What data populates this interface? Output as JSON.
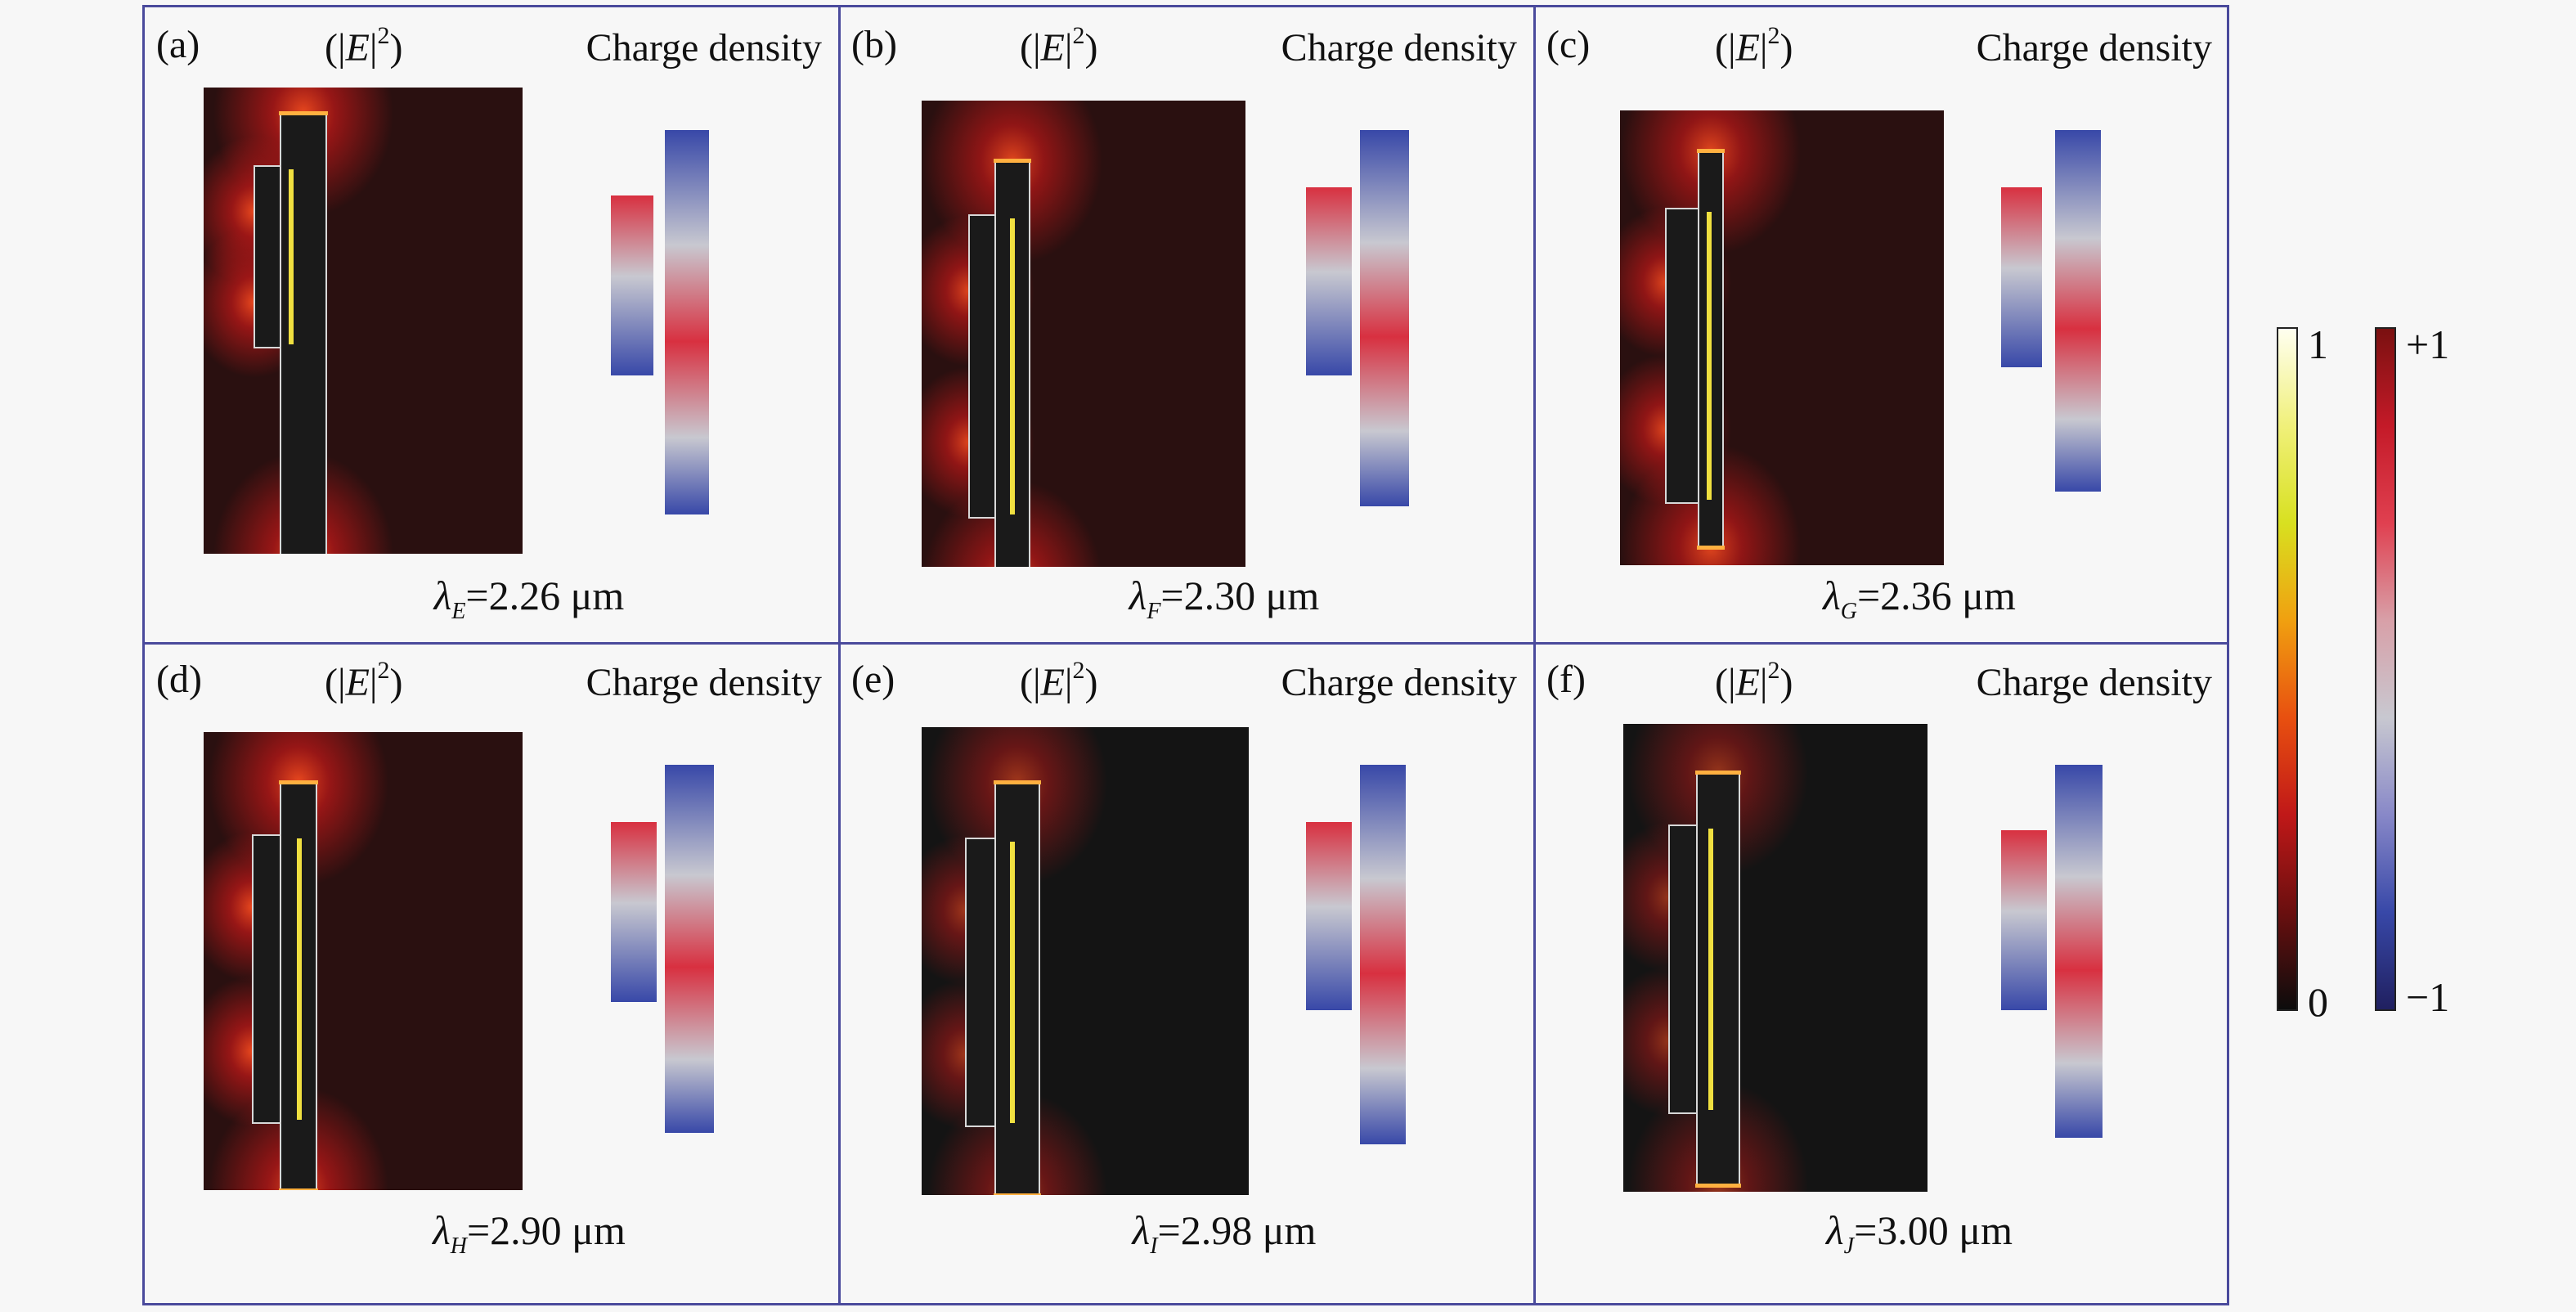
{
  "panels": [
    {
      "id": "a",
      "letter": "(a)",
      "e_open": "(|",
      "e_var": "E",
      "e_close": "|",
      "e_sup": "2",
      "e_end": ")",
      "charge_label": "Charge density",
      "lambda_sym": "λ",
      "lambda_sub": "E",
      "lambda_value": "=2.26 μm"
    },
    {
      "id": "b",
      "letter": "(b)",
      "e_open": "(|",
      "e_var": "E",
      "e_close": "|",
      "e_sup": "2",
      "e_end": ")",
      "charge_label": "Charge density",
      "lambda_sym": "λ",
      "lambda_sub": "F",
      "lambda_value": "=2.30 μm"
    },
    {
      "id": "c",
      "letter": "(c)",
      "e_open": "(|",
      "e_var": "E",
      "e_close": "|",
      "e_sup": "2",
      "e_end": ")",
      "charge_label": "Charge density",
      "lambda_sym": "λ",
      "lambda_sub": "G",
      "lambda_value": "=2.36 μm"
    },
    {
      "id": "d",
      "letter": "(d)",
      "e_open": "(|",
      "e_var": "E",
      "e_close": "|",
      "e_sup": "2",
      "e_end": ")",
      "charge_label": "Charge density",
      "lambda_sym": "λ",
      "lambda_sub": "H",
      "lambda_value": "=2.90 μm"
    },
    {
      "id": "e",
      "letter": "(e)",
      "e_open": "(|",
      "e_var": "E",
      "e_close": "|",
      "e_sup": "2",
      "e_end": ")",
      "charge_label": "Charge density",
      "lambda_sym": "λ",
      "lambda_sub": "I",
      "lambda_value": "=2.98 μm"
    },
    {
      "id": "f",
      "letter": "(f)",
      "e_open": "(|",
      "e_var": "E",
      "e_close": "|",
      "e_sup": "2",
      "e_end": ")",
      "charge_label": "Charge density",
      "lambda_sym": "λ",
      "lambda_sub": "J",
      "lambda_value": "=3.00 μm"
    }
  ],
  "colorbars": {
    "field": {
      "max_label": "1",
      "min_label": "0",
      "colors": [
        "#fffff0",
        "#f0f07a",
        "#d8e020",
        "#f0a010",
        "#e85010",
        "#c01818",
        "#6a0f0f",
        "#0c0c0c"
      ]
    },
    "charge": {
      "max_label": "+1",
      "min_label": "−1",
      "colors": [
        "#7a1010",
        "#c41a28",
        "#e04050",
        "#d8a0a8",
        "#c8c8d0",
        "#8888c8",
        "#3848a8",
        "#202060"
      ]
    }
  },
  "colors": {
    "frame": "#4a4a9c",
    "background": "#f7f7f7"
  }
}
